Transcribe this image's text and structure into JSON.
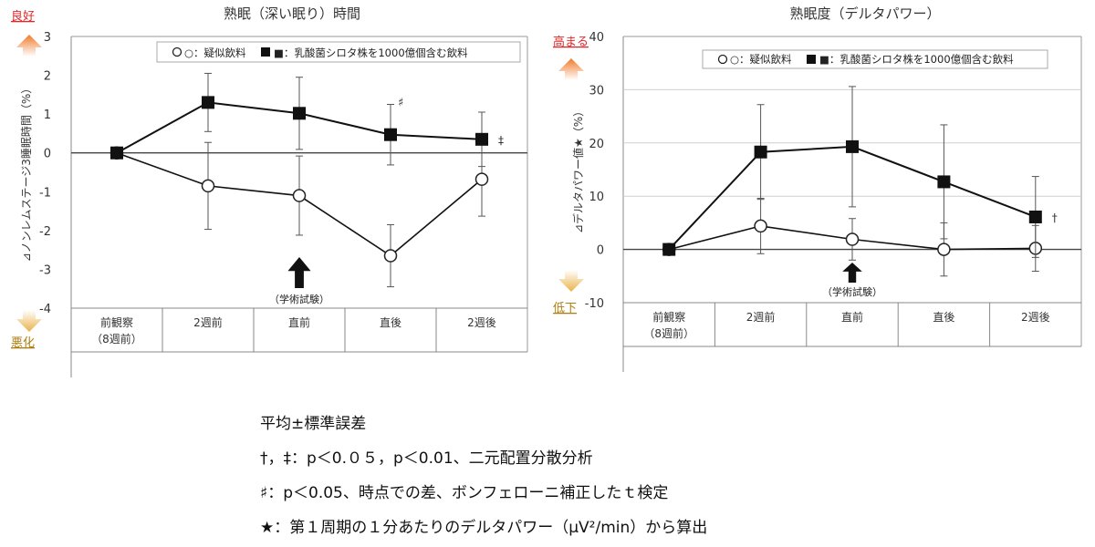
{
  "chart_data": [
    {
      "type": "line",
      "title": "熟眠（深い眠り）時間",
      "ylabel": "⊿ノンレムステージ3睡眠時間（%）",
      "ylim": [
        -4,
        3
      ],
      "yticks": [
        3,
        2,
        1,
        0,
        -1,
        -2,
        -3,
        -4
      ],
      "categories": [
        "前観察\n（8週前）",
        "2週前",
        "直前",
        "直後",
        "2週後"
      ],
      "legend": {
        "placement": "top",
        "entries": [
          "○：疑似飲料",
          "■：乳酸菌シロタ株を1000億個含む飲料"
        ]
      },
      "series": [
        {
          "name": "疑似飲料",
          "marker": "open-circle",
          "values": [
            0,
            -0.85,
            -1.1,
            -2.65,
            -0.68
          ],
          "error": [
            0,
            1.12,
            1.02,
            0.8,
            0.95
          ]
        },
        {
          "name": "乳酸菌シロタ株を1000億個含む飲料",
          "marker": "filled-square",
          "values": [
            0,
            1.3,
            1.02,
            0.47,
            0.35
          ],
          "error": [
            0,
            0.75,
            0.93,
            0.78,
            0.7
          ]
        }
      ],
      "annotations": {
        "sharp": "♯",
        "dagger": "‡",
        "arrow_label": "（学術試験）",
        "good": "良好",
        "bad": "悪化"
      },
      "grid": false
    },
    {
      "type": "line",
      "title": "熟眠度（デルタパワー）",
      "ylabel": "⊿デルタパワー値★（%）",
      "ylim": [
        -10,
        40
      ],
      "yticks": [
        40,
        30,
        20,
        10,
        0,
        -10
      ],
      "categories": [
        "前観察\n（8週前）",
        "2週前",
        "直前",
        "直後",
        "2週後"
      ],
      "legend": {
        "placement": "top",
        "entries": [
          "○：疑似飲料",
          "■：乳酸菌シロタ株を1000億個含む飲料"
        ]
      },
      "series": [
        {
          "name": "疑似飲料",
          "marker": "open-circle",
          "values": [
            0,
            4.4,
            1.9,
            0,
            0.2
          ],
          "error": [
            0,
            5.2,
            3.9,
            5,
            4.3
          ]
        },
        {
          "name": "乳酸菌シロタ株を1000億個含む飲料",
          "marker": "filled-square",
          "values": [
            0,
            18.3,
            19.3,
            12.7,
            6.1
          ],
          "error": [
            0,
            8.9,
            11.3,
            10.7,
            7.6
          ]
        }
      ],
      "annotations": {
        "dagger": "†",
        "arrow_label": "（学術試験）",
        "good": "高まる",
        "bad": "低下"
      },
      "grid": true
    }
  ],
  "notes": [
    "平均±標準誤差",
    "†，‡：p＜0.０５，p＜0.01、二元配置分散分析",
    "♯：p＜0.05、時点での差、ボンフェローニ補正したｔ検定",
    "★：第１周期の１分あたりのデルタパワー（μV²/min）から算出"
  ],
  "colors": {
    "good_arrow": "#f07a2a",
    "bad_arrow": "#e9b24a",
    "good_text": "#e0282a",
    "bad_text": "#b07d10",
    "line": "#111111"
  }
}
